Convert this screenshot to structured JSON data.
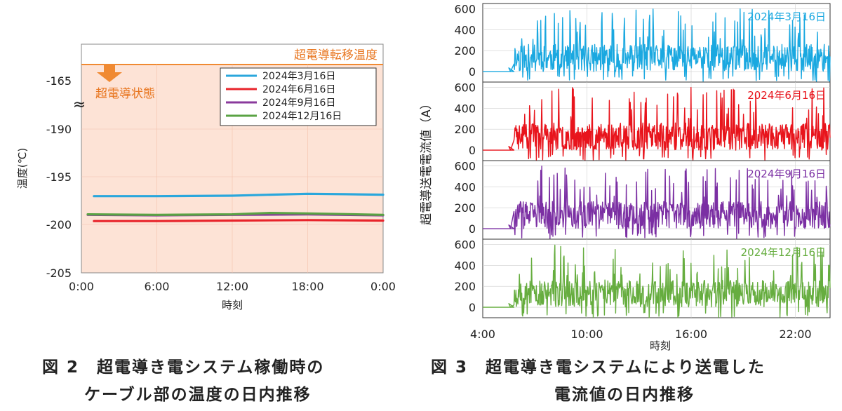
{
  "chart_data": [
    {
      "id": "fig2",
      "type": "line",
      "caption_lines": [
        "図 2　超電導き電システム稼働時の",
        "ケーブル部の温度の日内推移"
      ],
      "xlabel": "時刻",
      "ylabel": "温度(℃)",
      "x_ticks": [
        "0:00",
        "6:00",
        "12:00",
        "18:00",
        "0:00"
      ],
      "y_ticks": [
        "-165",
        "-190",
        "-195",
        "-200",
        "-205"
      ],
      "axis_break_symbol": "≈",
      "threshold_label": "超電導転移温度",
      "state_label": "超電導状態",
      "legend_placement": "top-right",
      "series": [
        {
          "name": "2024年3月16日",
          "color": "#2aa7dc",
          "start_hour": 1,
          "end_hour": 24,
          "x": [
            1,
            6,
            12,
            15,
            18,
            21,
            24
          ],
          "y": [
            -197.0,
            -197.0,
            -196.95,
            -196.85,
            -196.75,
            -196.8,
            -196.85
          ]
        },
        {
          "name": "2024年6月16日",
          "color": "#e8242b",
          "start_hour": 1,
          "end_hour": 24,
          "x": [
            1,
            6,
            12,
            18,
            24
          ],
          "y": [
            -199.6,
            -199.6,
            -199.55,
            -199.5,
            -199.55
          ]
        },
        {
          "name": "2024年9月16日",
          "color": "#8a3a9c",
          "start_hour": 0.5,
          "end_hour": 24,
          "x": [
            0.5,
            6,
            12,
            18,
            24
          ],
          "y": [
            -198.95,
            -199.0,
            -198.95,
            -198.9,
            -199.0
          ]
        },
        {
          "name": "2024年12月16日",
          "color": "#5aa344",
          "start_hour": 0.5,
          "end_hour": 24,
          "x": [
            0.5,
            6,
            12,
            15,
            18,
            24
          ],
          "y": [
            -198.9,
            -198.95,
            -198.9,
            -198.75,
            -198.8,
            -198.95
          ]
        }
      ]
    },
    {
      "id": "fig3",
      "type": "line",
      "caption_lines": [
        "図 3　超電導き電システムにより送電した",
        "電流値の日内推移"
      ],
      "xlabel": "時刻",
      "ylabel": "超電導送電電流値（A）",
      "x_ticks": [
        "4:00",
        "10:00",
        "16:00",
        "22:00"
      ],
      "y_ticks": [
        "600",
        "400",
        "200",
        "0"
      ],
      "xlim_hours": [
        4,
        24
      ],
      "ylim": [
        -100,
        650
      ],
      "panels": [
        {
          "name": "2024年3月16日",
          "color": "#1aa8e0",
          "seed": 11
        },
        {
          "name": "2024年6月16日",
          "color": "#e8141c",
          "seed": 23
        },
        {
          "name": "2024年9月16日",
          "color": "#7b2fa3",
          "seed": 37
        },
        {
          "name": "2024年12月16日",
          "color": "#66ad3f",
          "seed": 53
        }
      ]
    }
  ]
}
